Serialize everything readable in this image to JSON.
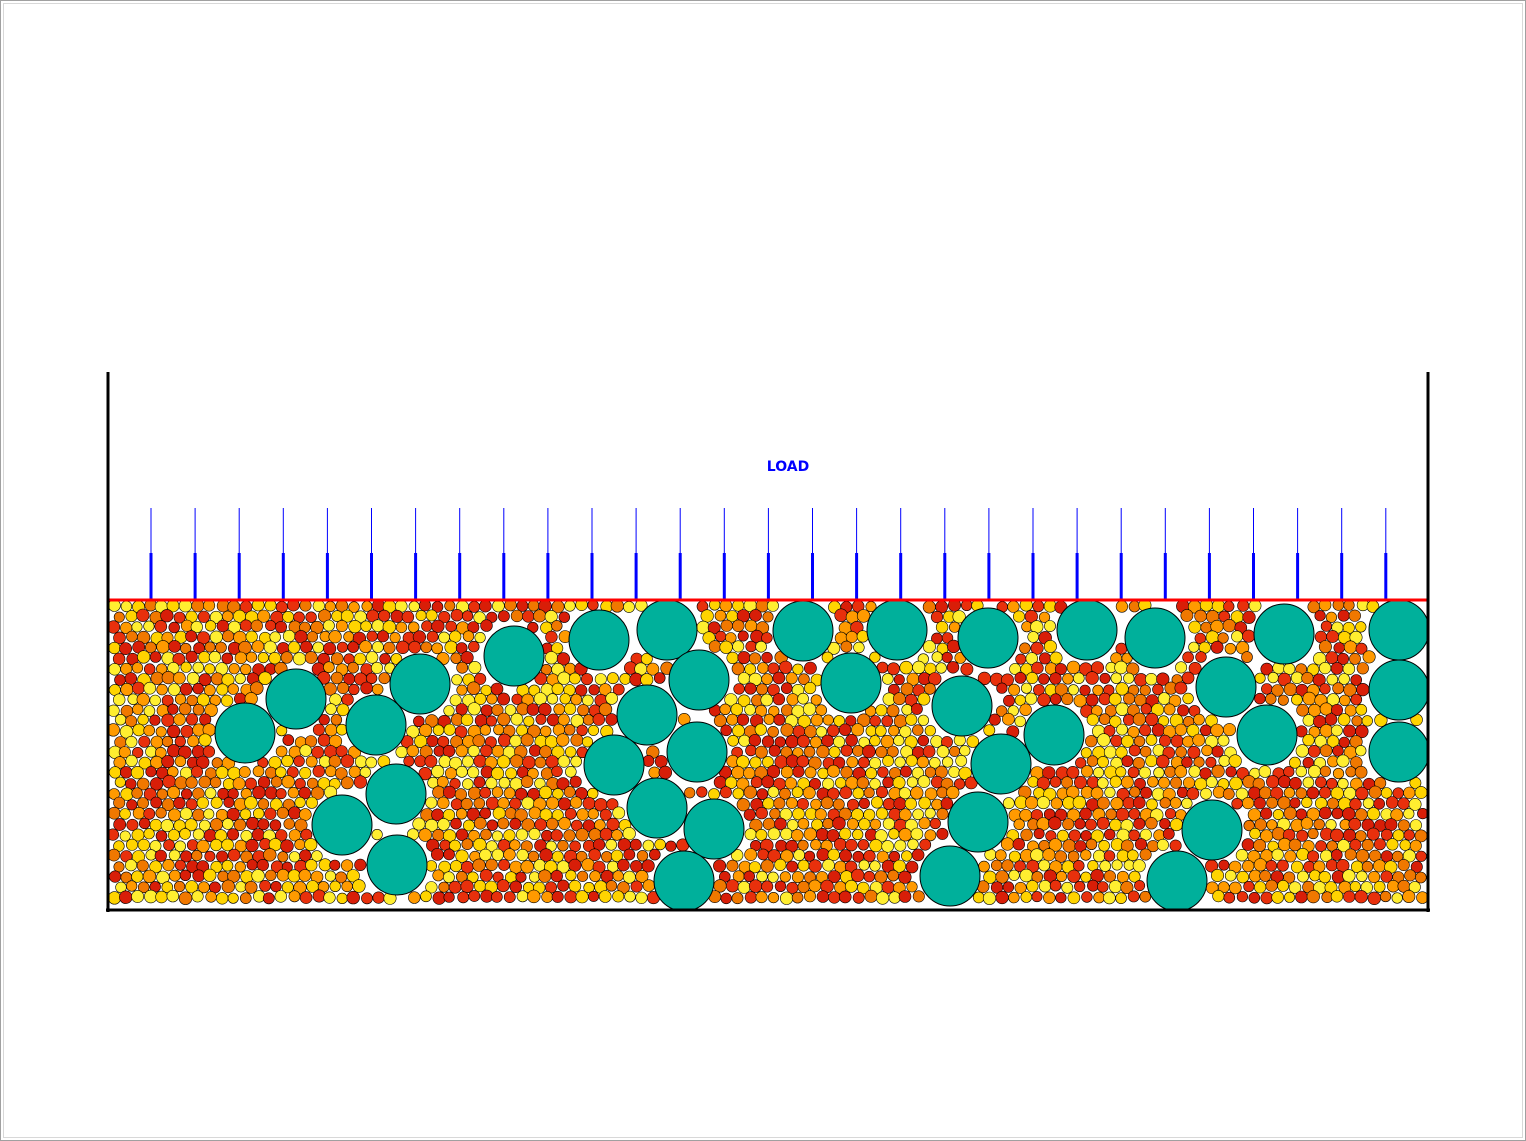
{
  "label": "LOAD"
}
